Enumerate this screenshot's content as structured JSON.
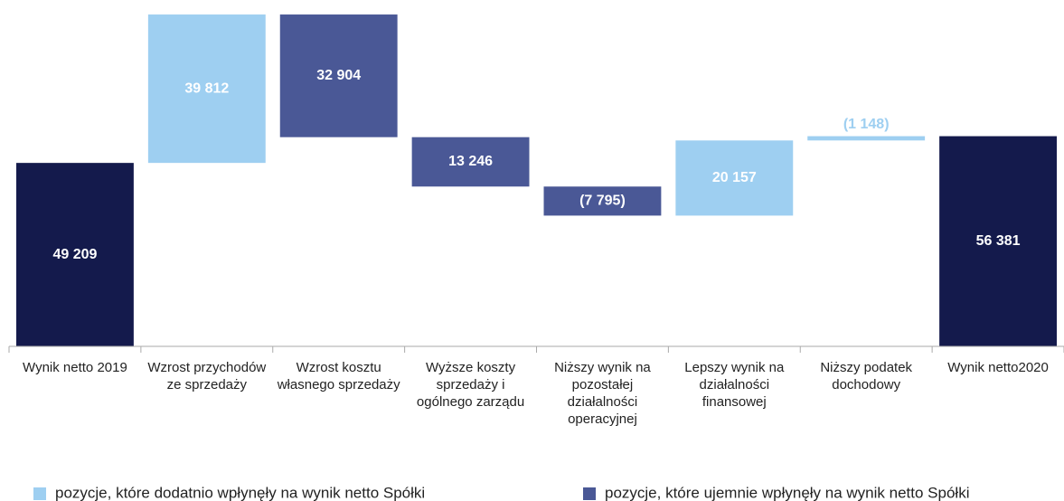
{
  "chart_data": {
    "type": "waterfall",
    "categories": [
      "Wynik netto 2019",
      "Wzrost przychodów ze sprzedaży",
      "Wzrost kosztu własnego sprzedaży",
      "Wyższe koszty sprzedaży i ogólnego zarządu",
      "Niższy wynik na pozostałej działalności operacyjnej",
      "Lepszy wynik na działalności finansowej",
      "Niższy podatek dochodowy",
      "Wynik netto2020"
    ],
    "values": [
      49209,
      39812,
      32904,
      13246,
      -7795,
      20157,
      -1148,
      56381
    ],
    "value_labels": [
      "49 209",
      "39 812",
      "32 904",
      "13 246",
      "(7 795)",
      "20 157",
      "(1 148)",
      "56 381"
    ],
    "kinds": [
      "total",
      "positive",
      "negative",
      "negative",
      "negative",
      "positive",
      "positive",
      "total"
    ],
    "colors": {
      "total": "#141a4c",
      "positive": "#9ecff1",
      "negative": "#4a5896"
    },
    "legend": [
      {
        "name": "pozycje, które dodatnio wpłynęły na wynik netto Spółki",
        "kind": "positive"
      },
      {
        "name": "pozycje, które ujemnie wpłynęły na wynik netto Spółki",
        "kind": "negative"
      }
    ],
    "ylim": [
      0,
      90000
    ]
  }
}
